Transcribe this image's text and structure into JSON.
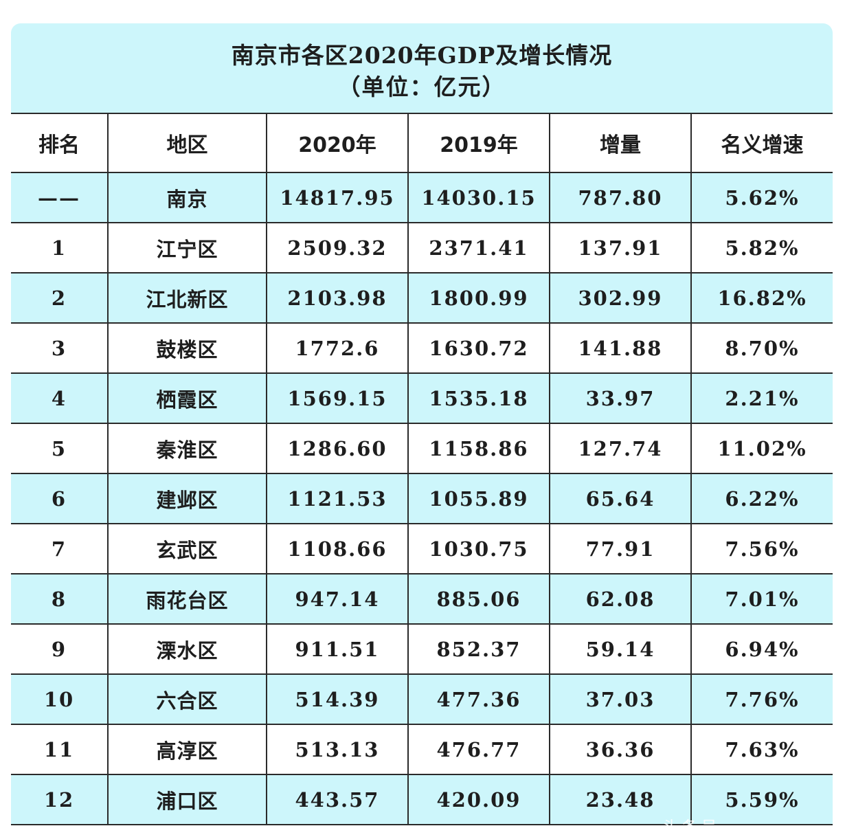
{
  "title": {
    "line1": "南京市各区2020年GDP及增长情况",
    "line2": "（单位：亿元）"
  },
  "headers": [
    "排名",
    "地区",
    "2020年",
    "2019年",
    "增量",
    "名义增速"
  ],
  "rows": [
    {
      "rank": "——",
      "region": "南京",
      "y2020": "14817.95",
      "y2019": "14030.15",
      "increase": "787.80",
      "growth": "5.62%"
    },
    {
      "rank": "1",
      "region": "江宁区",
      "y2020": "2509.32",
      "y2019": "2371.41",
      "increase": "137.91",
      "growth": "5.82%"
    },
    {
      "rank": "2",
      "region": "江北新区",
      "y2020": "2103.98",
      "y2019": "1800.99",
      "increase": "302.99",
      "growth": "16.82%"
    },
    {
      "rank": "3",
      "region": "鼓楼区",
      "y2020": "1772.6",
      "y2019": "1630.72",
      "increase": "141.88",
      "growth": "8.70%"
    },
    {
      "rank": "4",
      "region": "栖霞区",
      "y2020": "1569.15",
      "y2019": "1535.18",
      "increase": "33.97",
      "growth": "2.21%"
    },
    {
      "rank": "5",
      "region": "秦淮区",
      "y2020": "1286.60",
      "y2019": "1158.86",
      "increase": "127.74",
      "growth": "11.02%"
    },
    {
      "rank": "6",
      "region": "建邺区",
      "y2020": "1121.53",
      "y2019": "1055.89",
      "increase": "65.64",
      "growth": "6.22%"
    },
    {
      "rank": "7",
      "region": "玄武区",
      "y2020": "1108.66",
      "y2019": "1030.75",
      "increase": "77.91",
      "growth": "7.56%"
    },
    {
      "rank": "8",
      "region": "雨花台区",
      "y2020": "947.14",
      "y2019": "885.06",
      "increase": "62.08",
      "growth": "7.01%"
    },
    {
      "rank": "9",
      "region": "溧水区",
      "y2020": "911.51",
      "y2019": "852.37",
      "increase": "59.14",
      "growth": "6.94%"
    },
    {
      "rank": "10",
      "region": "六合区",
      "y2020": "514.39",
      "y2019": "477.36",
      "increase": "37.03",
      "growth": "7.76%"
    },
    {
      "rank": "11",
      "region": "高淳区",
      "y2020": "513.13",
      "y2019": "476.77",
      "increase": "36.36",
      "growth": "7.63%"
    },
    {
      "rank": "12",
      "region": "浦口区",
      "y2020": "443.57",
      "y2019": "420.09",
      "increase": "23.48",
      "growth": "5.59%"
    }
  ],
  "colors": {
    "cyan_band": "#cdf6fb",
    "border": "#2a2a2a",
    "text": "#1e1e1e"
  },
  "watermark": "头条号"
}
